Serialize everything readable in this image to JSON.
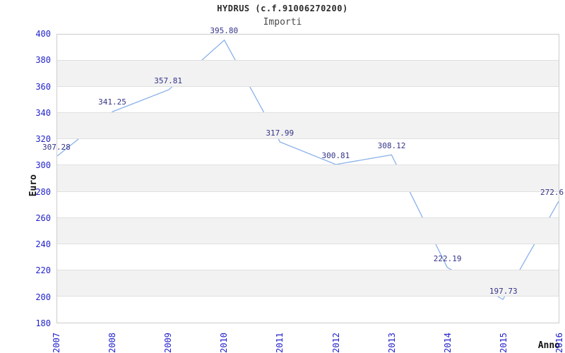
{
  "chart_data": {
    "type": "line",
    "title": "HYDRUS (c.f.91006270200)",
    "subtitle": "Importi",
    "xlabel": "Anno",
    "ylabel": "Euro",
    "categories": [
      "2007",
      "2008",
      "2009",
      "2010",
      "2011",
      "2012",
      "2013",
      "2014",
      "2015",
      "2016"
    ],
    "series": [
      {
        "name": "Importi",
        "values": [
          307.28,
          341.25,
          357.81,
          395.8,
          317.99,
          300.81,
          308.12,
          222.19,
          197.73,
          272.6
        ]
      }
    ],
    "point_labels": [
      "307.28",
      "341.25",
      "357.81",
      "395.80",
      "317.99",
      "300.81",
      "308.12",
      "222.19",
      "197.73",
      "272.6"
    ],
    "ylim": [
      180,
      400
    ],
    "ytick_step": 20,
    "grid": "horizontal-bands-alternating",
    "legend": "none",
    "colors": {
      "line": "#8ab1ea",
      "tick_label": "#2222cc",
      "point_label": "#333388",
      "band": "#f2f2f2",
      "gridline": "#e0e0e0",
      "plot_border": "#cccccc",
      "title": "#2a2a2a",
      "subtitle": "#4a4a4a",
      "axis_title": "#111111",
      "background": "#ffffff"
    }
  }
}
